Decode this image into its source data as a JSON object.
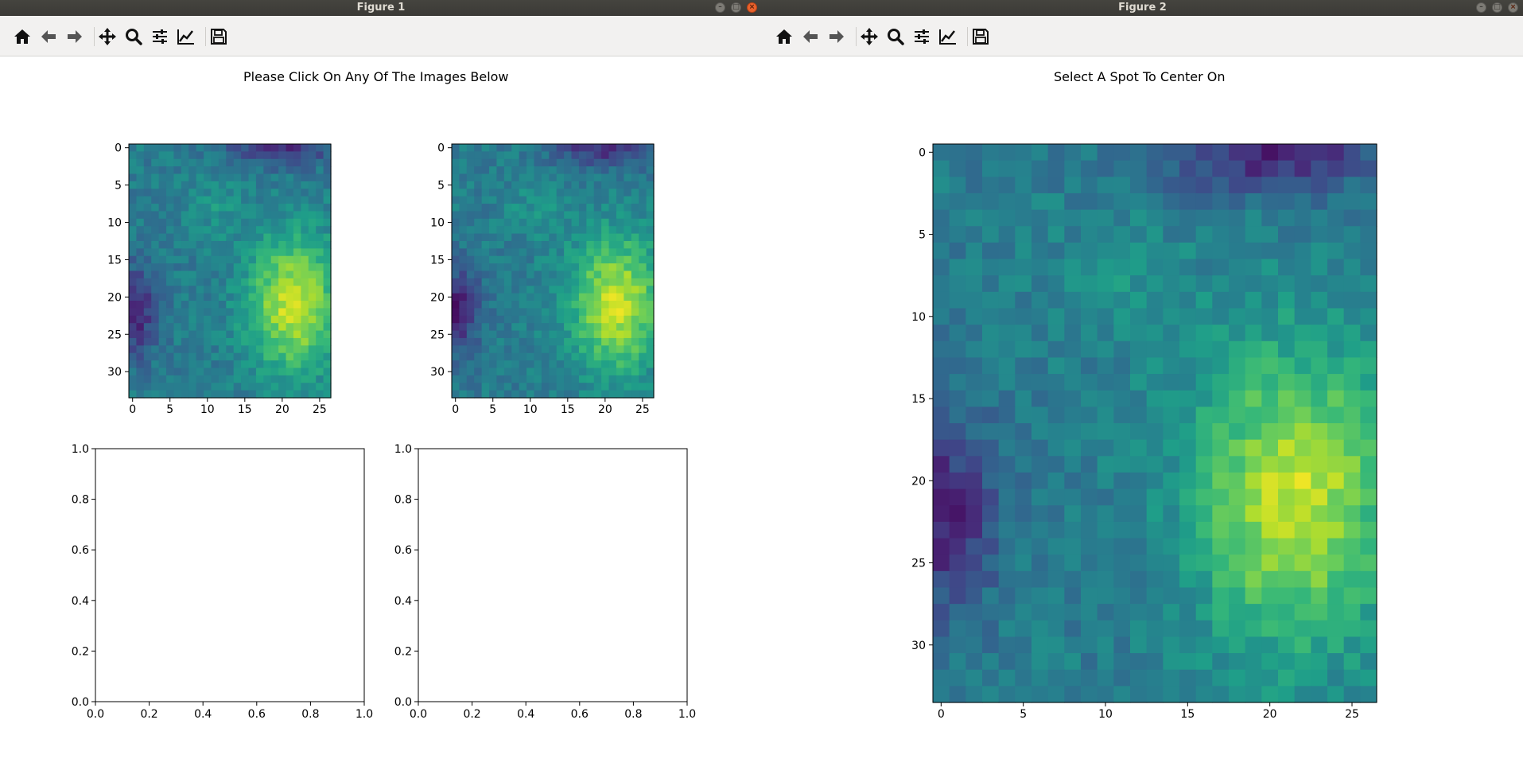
{
  "figure1": {
    "window_title": "Figure 1",
    "plot_title": "Please Click On Any Of The Images Below",
    "image_xticks": [
      "0",
      "5",
      "10",
      "15",
      "20",
      "25"
    ],
    "image_yticks": [
      "0",
      "5",
      "10",
      "15",
      "20",
      "25",
      "30"
    ],
    "empty_axes_ticks": [
      "0.0",
      "0.2",
      "0.4",
      "0.6",
      "0.8",
      "1.0"
    ]
  },
  "figure2": {
    "window_title": "Figure 2",
    "plot_title": "Select A Spot To Center On",
    "image_xticks": [
      "0",
      "5",
      "10",
      "15",
      "20",
      "25"
    ],
    "image_yticks": [
      "0",
      "5",
      "10",
      "15",
      "20",
      "25",
      "30"
    ]
  },
  "toolbar_icons": [
    "home-icon",
    "back-arrow-icon",
    "forward-arrow-icon",
    "pan-icon",
    "zoom-icon",
    "subplots-icon",
    "edit-curves-icon",
    "save-icon"
  ],
  "colors": {
    "titlebar": "#3c3b37",
    "toolbar": "#f2f1f0",
    "close_button": "#e9622c",
    "colormap": "viridis"
  },
  "chart_data": [
    {
      "type": "heatmap",
      "panel": "figure1-image-1",
      "rows": 34,
      "cols": 27,
      "xlim": [
        -0.5,
        26.5
      ],
      "ylim": [
        33.5,
        -0.5
      ],
      "colormap": "viridis"
    },
    {
      "type": "heatmap",
      "panel": "figure1-image-2",
      "rows": 34,
      "cols": 27,
      "xlim": [
        -0.5,
        26.5
      ],
      "ylim": [
        33.5,
        -0.5
      ],
      "colormap": "viridis"
    },
    {
      "type": "line",
      "panel": "figure1-empty-axes-1",
      "xlim": [
        0,
        1
      ],
      "ylim": [
        0,
        1
      ],
      "series": []
    },
    {
      "type": "line",
      "panel": "figure1-empty-axes-2",
      "xlim": [
        0,
        1
      ],
      "ylim": [
        0,
        1
      ],
      "series": []
    },
    {
      "type": "heatmap",
      "panel": "figure2-image",
      "rows": 34,
      "cols": 27,
      "xlim": [
        -0.5,
        26.5
      ],
      "ylim": [
        33.5,
        -0.5
      ],
      "colormap": "viridis"
    }
  ]
}
